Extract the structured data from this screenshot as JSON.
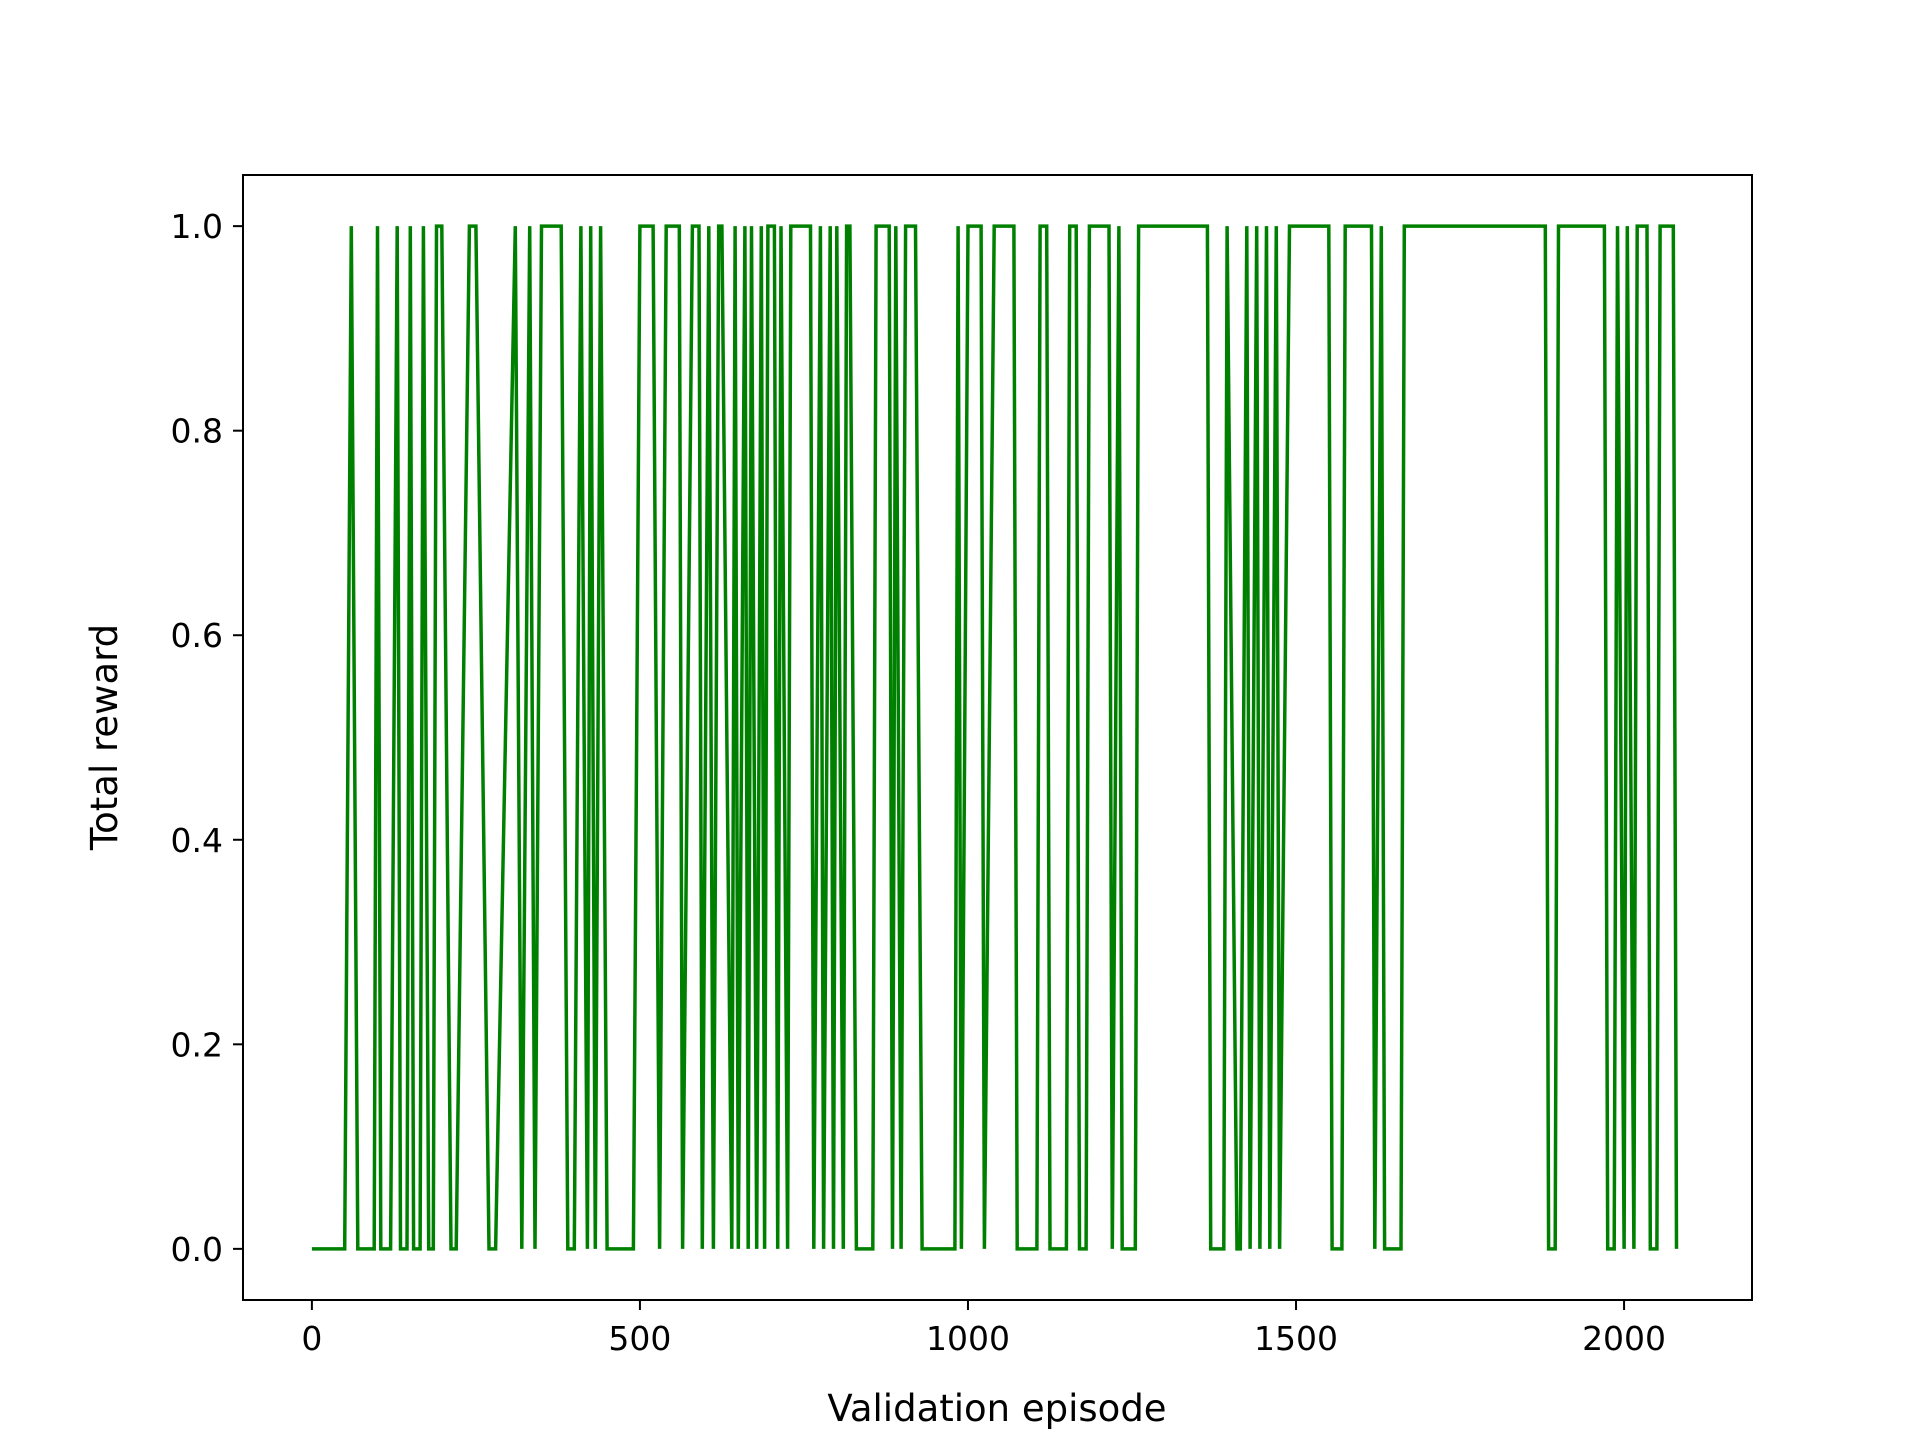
{
  "chart_data": {
    "type": "line",
    "title": "",
    "xlabel": "Validation episode",
    "ylabel": "Total reward",
    "xlim": [
      -105,
      2195
    ],
    "ylim": [
      -0.05,
      1.05
    ],
    "xticks": [
      0,
      500,
      1000,
      1500,
      2000
    ],
    "yticks": [
      0.0,
      0.2,
      0.4,
      0.6,
      0.8,
      1.0
    ],
    "xtick_labels": [
      "0",
      "500",
      "1000",
      "1500",
      "2000"
    ],
    "ytick_labels": [
      "0.0",
      "0.2",
      "0.4",
      "0.6",
      "0.8",
      "1.0"
    ],
    "grid": false,
    "legend": "none",
    "series": [
      {
        "color": "#008000",
        "x": [
          0,
          50,
          60,
          70,
          95,
          100,
          105,
          120,
          130,
          135,
          145,
          150,
          155,
          165,
          170,
          178,
          185,
          190,
          198,
          212,
          220,
          240,
          250,
          270,
          280,
          310,
          320,
          332,
          340,
          350,
          380,
          390,
          400,
          410,
          420,
          425,
          432,
          440,
          450,
          458,
          490,
          500,
          520,
          530,
          540,
          560,
          565,
          580,
          590,
          595,
          605,
          612,
          620,
          625,
          640,
          645,
          650,
          660,
          665,
          670,
          678,
          685,
          690,
          695,
          705,
          710,
          715,
          725,
          730,
          760,
          765,
          775,
          780,
          790,
          795,
          800,
          810,
          815,
          820,
          830,
          855,
          860,
          880,
          885,
          890,
          898,
          905,
          920,
          930,
          980,
          985,
          990,
          1000,
          1010,
          1020,
          1025,
          1040,
          1045,
          1070,
          1075,
          1105,
          1110,
          1120,
          1125,
          1150,
          1155,
          1165,
          1170,
          1180,
          1185,
          1215,
          1220,
          1230,
          1235,
          1255,
          1260,
          1275,
          1280,
          1365,
          1370,
          1390,
          1395,
          1410,
          1415,
          1425,
          1430,
          1440,
          1445,
          1455,
          1460,
          1470,
          1475,
          1490,
          1495,
          1550,
          1555,
          1570,
          1575,
          1615,
          1620,
          1630,
          1635,
          1660,
          1665,
          1705,
          1710,
          1880,
          1885,
          1895,
          1900,
          1970,
          1975,
          1985,
          1990,
          2000,
          2005,
          2015,
          2020,
          2035,
          2040,
          2050,
          2055,
          2075,
          2080
        ],
        "y": [
          0,
          0,
          1,
          0,
          0,
          1,
          0,
          0,
          1,
          0,
          0,
          1,
          0,
          0,
          1,
          0,
          0,
          1,
          1,
          0,
          0,
          1,
          1,
          0,
          0,
          1,
          0,
          1,
          0,
          1,
          1,
          0,
          0,
          1,
          0,
          1,
          0,
          1,
          0,
          0,
          0,
          1,
          1,
          0,
          1,
          1,
          0,
          1,
          1,
          0,
          1,
          0,
          1,
          1,
          0,
          1,
          0,
          1,
          0,
          1,
          0,
          1,
          0,
          1,
          1,
          0,
          1,
          0,
          1,
          1,
          0,
          1,
          0,
          1,
          0,
          1,
          0,
          1,
          1,
          0,
          0,
          1,
          1,
          0,
          1,
          0,
          1,
          1,
          0,
          0,
          1,
          0,
          1,
          1,
          1,
          0,
          1,
          1,
          1,
          0,
          0,
          1,
          1,
          0,
          0,
          1,
          1,
          0,
          0,
          1,
          1,
          0,
          1,
          0,
          0,
          1,
          1,
          1,
          1,
          0,
          0,
          1,
          0,
          0,
          1,
          0,
          1,
          0,
          1,
          0,
          1,
          0,
          1,
          1,
          1,
          0,
          0,
          1,
          1,
          0,
          1,
          0,
          0,
          1,
          1,
          1,
          1,
          0,
          0,
          1,
          1,
          0,
          0,
          1,
          0,
          1,
          0,
          1,
          1,
          0,
          0,
          1,
          1,
          0
        ]
      }
    ]
  }
}
